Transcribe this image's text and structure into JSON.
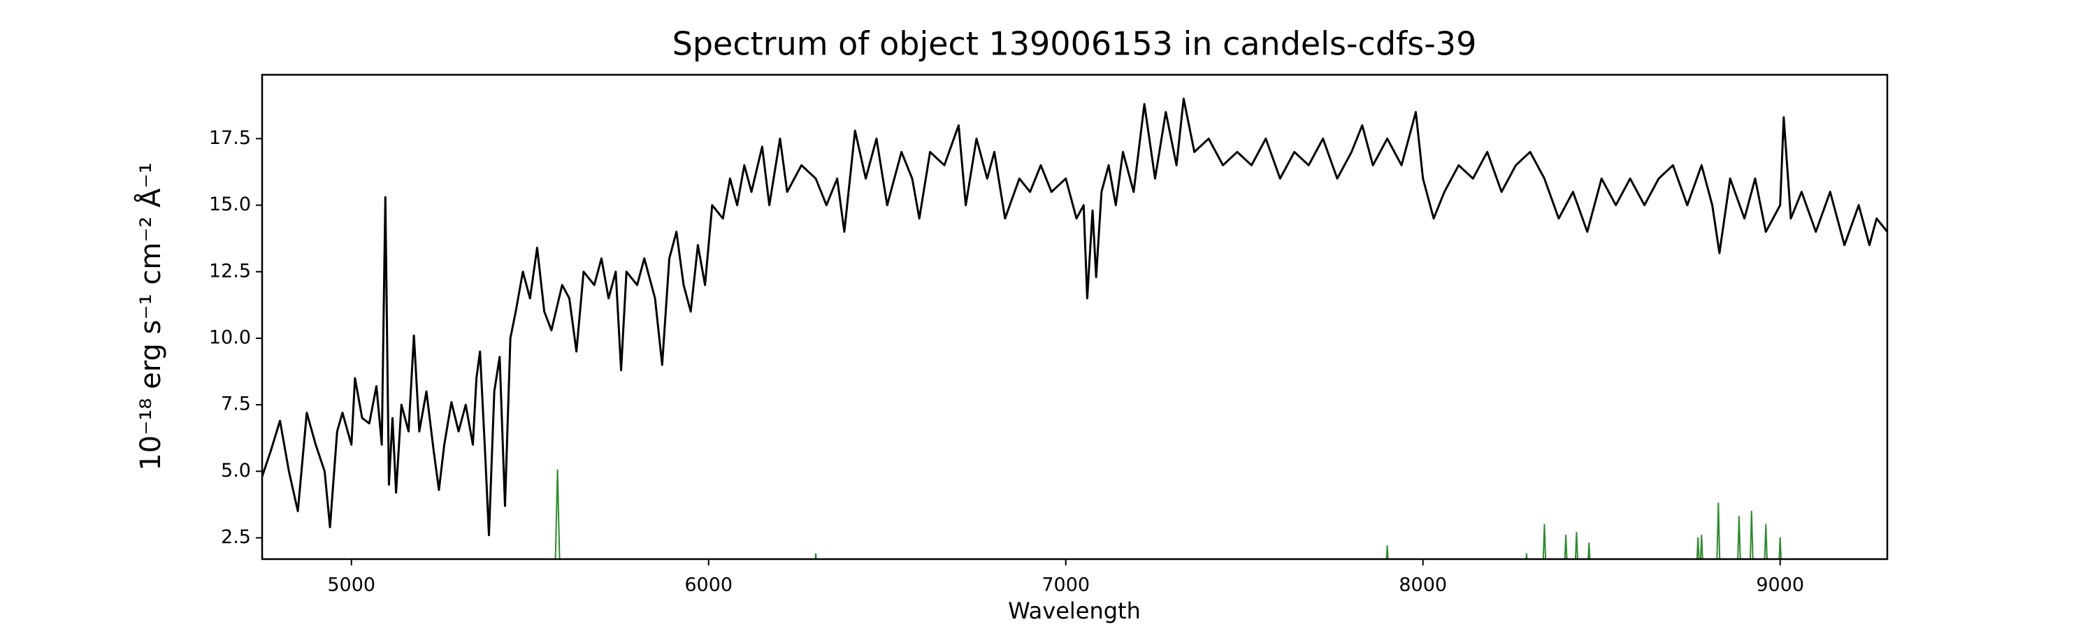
{
  "chart_data": {
    "type": "line",
    "title": "Spectrum of object 139006153 in candels-cdfs-39",
    "xlabel": "Wavelength",
    "ylabel": "10⁻¹⁸ erg s⁻¹ cm⁻² Å⁻¹",
    "xlim": [
      4750,
      9300
    ],
    "ylim": [
      1.7,
      19.9
    ],
    "xticks": [
      5000,
      6000,
      7000,
      8000,
      9000
    ],
    "yticks": [
      2.5,
      {
        "value": 5,
        "label": "5.0"
      },
      7.5,
      {
        "value": 10,
        "label": "10.0"
      },
      12.5,
      {
        "value": 15,
        "label": "15.0"
      },
      17.5
    ],
    "grid": false,
    "series": [
      {
        "color": "#000000",
        "x": [
          4750,
          4775,
          4800,
          4825,
          4850,
          4875,
          4900,
          4925,
          4940,
          4960,
          4975,
          5000,
          5010,
          5030,
          5050,
          5070,
          5085,
          5095,
          5105,
          5115,
          5125,
          5140,
          5160,
          5175,
          5190,
          5210,
          5230,
          5245,
          5260,
          5280,
          5300,
          5320,
          5340,
          5350,
          5360,
          5375,
          5385,
          5400,
          5415,
          5430,
          5445,
          5460,
          5480,
          5500,
          5520,
          5540,
          5560,
          5590,
          5610,
          5630,
          5650,
          5680,
          5700,
          5720,
          5740,
          5755,
          5770,
          5800,
          5820,
          5850,
          5870,
          5890,
          5910,
          5930,
          5950,
          5970,
          5990,
          6010,
          6040,
          6060,
          6080,
          6100,
          6120,
          6150,
          6170,
          6200,
          6220,
          6260,
          6300,
          6330,
          6360,
          6380,
          6410,
          6440,
          6470,
          6500,
          6540,
          6570,
          6590,
          6620,
          6660,
          6700,
          6720,
          6750,
          6780,
          6800,
          6830,
          6870,
          6900,
          6930,
          6960,
          7000,
          7030,
          7050,
          7060,
          7075,
          7085,
          7100,
          7120,
          7140,
          7160,
          7190,
          7220,
          7250,
          7280,
          7310,
          7330,
          7360,
          7400,
          7440,
          7480,
          7520,
          7560,
          7600,
          7640,
          7680,
          7720,
          7760,
          7800,
          7830,
          7860,
          7900,
          7940,
          7980,
          8000,
          8030,
          8060,
          8100,
          8140,
          8180,
          8220,
          8260,
          8300,
          8340,
          8380,
          8420,
          8460,
          8500,
          8540,
          8580,
          8620,
          8660,
          8700,
          8740,
          8780,
          8810,
          8830,
          8860,
          8900,
          8930,
          8960,
          9000,
          9010,
          9030,
          9060,
          9100,
          9140,
          9180,
          9220,
          9250,
          9270,
          9300
        ],
        "values": [
          4.8,
          5.8,
          6.9,
          5.0,
          3.5,
          7.2,
          6.0,
          5.0,
          2.9,
          6.5,
          7.2,
          6.0,
          8.5,
          7.0,
          6.8,
          8.2,
          6.0,
          15.3,
          4.5,
          7.0,
          4.2,
          7.5,
          6.5,
          10.1,
          6.5,
          8.0,
          5.8,
          4.3,
          6.0,
          7.6,
          6.5,
          7.5,
          6.0,
          8.5,
          9.5,
          5.5,
          2.6,
          8.0,
          9.3,
          3.7,
          10.0,
          11.0,
          12.5,
          11.5,
          13.4,
          11.0,
          10.3,
          12.0,
          11.5,
          9.5,
          12.5,
          12.0,
          13.0,
          11.5,
          12.5,
          8.8,
          12.5,
          12.0,
          13.0,
          11.5,
          9.0,
          13.0,
          14.0,
          12.0,
          11.0,
          13.5,
          12.0,
          15.0,
          14.5,
          16.0,
          15.0,
          16.5,
          15.5,
          17.2,
          15.0,
          17.5,
          15.5,
          16.5,
          16.0,
          15.0,
          16.0,
          14.0,
          17.8,
          16.0,
          17.5,
          15.0,
          17.0,
          16.0,
          14.5,
          17.0,
          16.5,
          18.0,
          15.0,
          17.5,
          16.0,
          17.0,
          14.5,
          16.0,
          15.5,
          16.5,
          15.5,
          16.0,
          14.5,
          15.0,
          11.5,
          14.8,
          12.3,
          15.5,
          16.5,
          15.0,
          17.0,
          15.5,
          18.8,
          16.0,
          18.5,
          16.5,
          19.0,
          17.0,
          17.5,
          16.5,
          17.0,
          16.5,
          17.5,
          16.0,
          17.0,
          16.5,
          17.5,
          16.0,
          17.0,
          18.0,
          16.5,
          17.5,
          16.5,
          18.5,
          16.0,
          14.5,
          15.5,
          16.5,
          16.0,
          17.0,
          15.5,
          16.5,
          17.0,
          16.0,
          14.5,
          15.5,
          14.0,
          16.0,
          15.0,
          16.0,
          15.0,
          16.0,
          16.5,
          15.0,
          16.5,
          15.0,
          13.2,
          16.0,
          14.5,
          16.0,
          14.0,
          15.0,
          18.3,
          14.5,
          15.5,
          14.0,
          15.5,
          13.5,
          15.0,
          13.5,
          14.5,
          14.0
        ]
      },
      {
        "color": "#2e8b2e",
        "x": [
          4750,
          4755,
          4760,
          5570,
          5577,
          5584,
          6295,
          6300,
          6305,
          7895,
          7900,
          7905,
          8285,
          8290,
          8295,
          8335,
          8340,
          8345,
          8395,
          8400,
          8405,
          8425,
          8430,
          8435,
          8460,
          8465,
          8470,
          8765,
          8770,
          8775,
          8780,
          8785,
          8822,
          8827,
          8832,
          8880,
          8885,
          8890,
          8915,
          8920,
          8925,
          8955,
          8960,
          8965,
          8995,
          9000,
          9005
        ],
        "values": [
          1.9,
          1,
          1,
          1,
          5.05,
          1,
          1,
          1.9,
          1,
          1,
          2.2,
          1,
          1,
          1.9,
          1,
          1,
          3.0,
          1,
          1,
          2.6,
          1,
          1,
          2.7,
          1,
          1,
          2.3,
          1,
          1,
          2.5,
          1,
          2.6,
          1,
          1,
          3.8,
          1,
          1,
          3.3,
          1,
          1,
          3.5,
          1,
          1,
          3.0,
          1,
          1,
          2.5,
          1
        ]
      }
    ]
  }
}
